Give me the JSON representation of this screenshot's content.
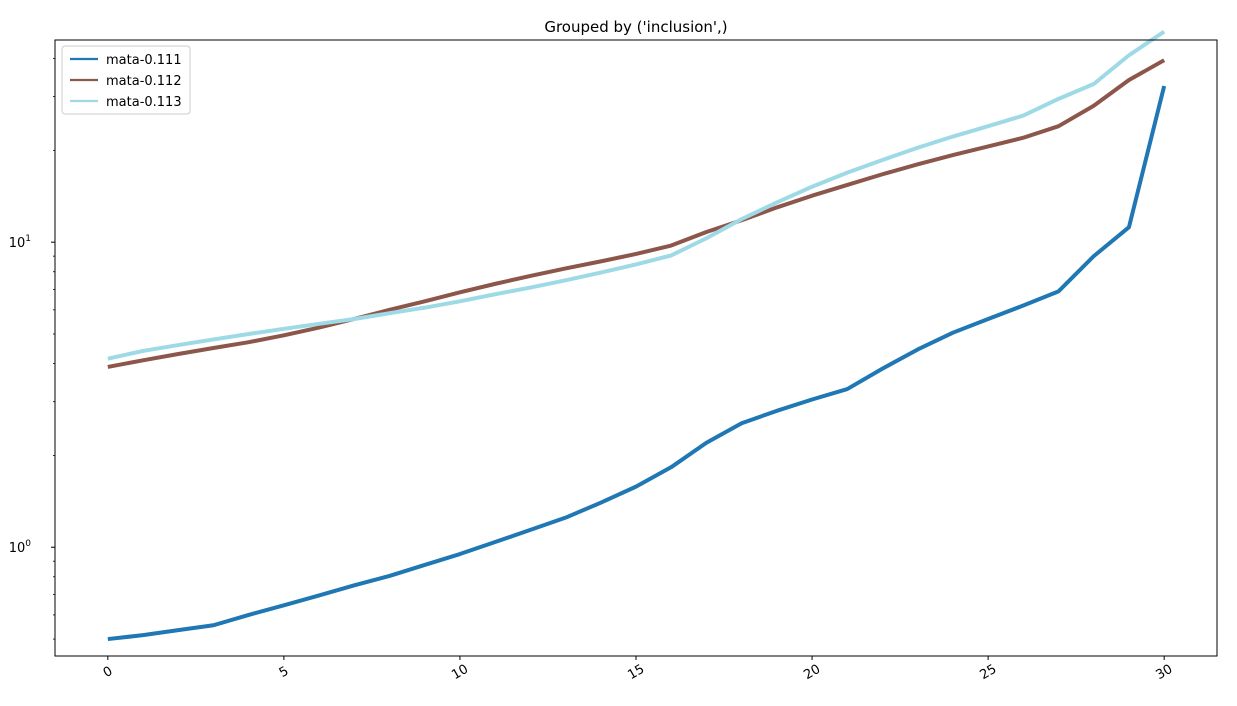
{
  "chart_data": {
    "type": "line",
    "title": "Grouped by ('inclusion',)",
    "xlabel": "",
    "ylabel": "",
    "yscale": "log",
    "xlim": [
      -1.5,
      31.5
    ],
    "ylim": [
      0.44,
      46
    ],
    "xticks": [
      0,
      5,
      10,
      15,
      20,
      25,
      30
    ],
    "xtick_labels": [
      "0",
      "5",
      "10",
      "15",
      "20",
      "25",
      "30"
    ],
    "xtick_rotation": 30,
    "yticks": [
      1,
      10
    ],
    "ytick_labels": [
      {
        "base": "10",
        "exp": "0"
      },
      {
        "base": "10",
        "exp": "1"
      }
    ],
    "legend_position": "upper-left",
    "grid": false,
    "x": [
      0,
      1,
      2,
      3,
      4,
      5,
      6,
      7,
      8,
      9,
      10,
      11,
      12,
      13,
      14,
      15,
      16,
      17,
      18,
      19,
      20,
      21,
      22,
      23,
      24,
      25,
      26,
      27,
      28,
      29,
      30
    ],
    "series": [
      {
        "name": "mata-0.111",
        "color": "#1f77b4",
        "values": [
          0.5,
          0.515,
          0.535,
          0.555,
          0.6,
          0.645,
          0.695,
          0.75,
          0.805,
          0.875,
          0.95,
          1.04,
          1.14,
          1.25,
          1.4,
          1.58,
          1.83,
          2.2,
          2.55,
          2.8,
          3.05,
          3.3,
          3.85,
          4.45,
          5.05,
          5.6,
          6.2,
          6.9,
          9.0,
          11.2,
          32.5
        ]
      },
      {
        "name": "mata-0.112",
        "color": "#8c564b",
        "values": [
          3.9,
          4.1,
          4.3,
          4.5,
          4.7,
          4.95,
          5.25,
          5.6,
          6.0,
          6.4,
          6.85,
          7.3,
          7.75,
          8.2,
          8.65,
          9.15,
          9.75,
          10.8,
          11.8,
          13.0,
          14.2,
          15.4,
          16.7,
          18.0,
          19.3,
          20.6,
          22.0,
          24.0,
          28.0,
          34.0,
          39.5
        ]
      },
      {
        "name": "mata-0.113",
        "color": "#9edae5",
        "values": [
          4.15,
          4.4,
          4.6,
          4.8,
          5.0,
          5.2,
          5.4,
          5.6,
          5.85,
          6.1,
          6.4,
          6.75,
          7.1,
          7.5,
          7.95,
          8.45,
          9.05,
          10.3,
          11.9,
          13.5,
          15.2,
          16.9,
          18.6,
          20.4,
          22.2,
          24.0,
          26.0,
          29.5,
          33.0,
          41.0,
          49.0
        ]
      }
    ]
  }
}
